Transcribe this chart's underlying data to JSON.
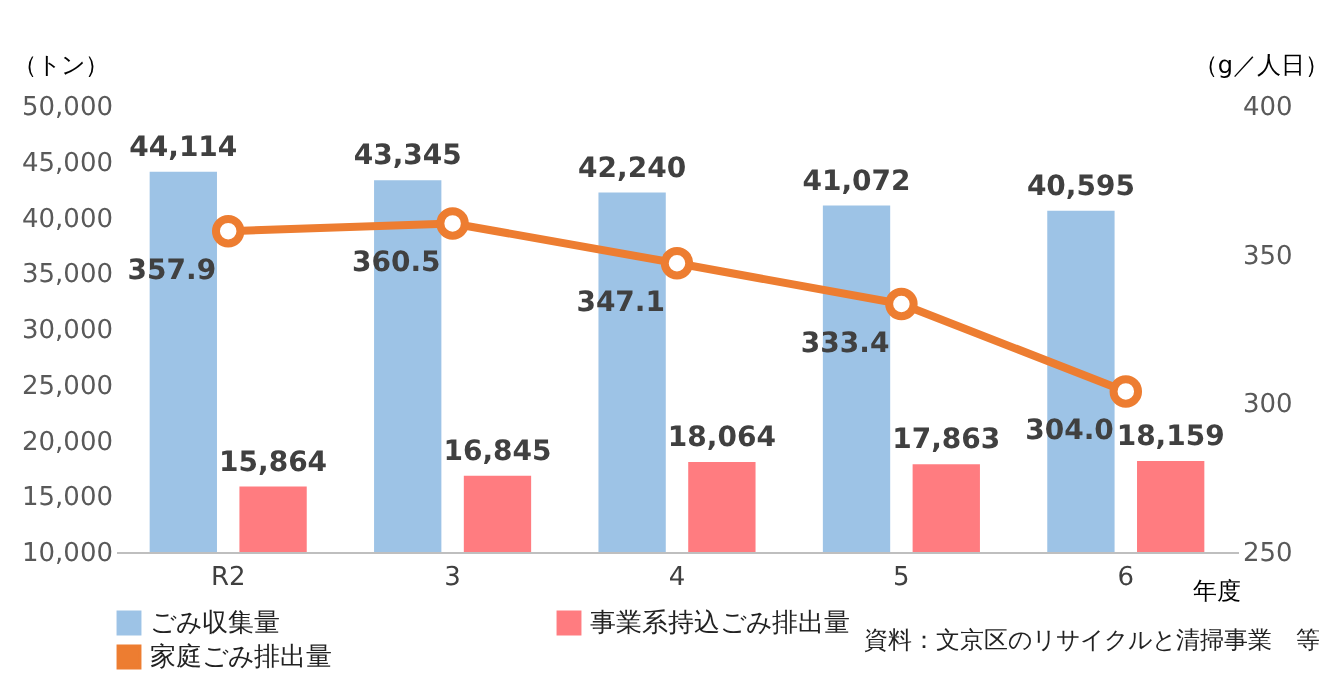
{
  "chart_data": {
    "type": "bar",
    "ylabel": "（トン）",
    "y2label": "（g／人日）",
    "xlabel": "年度",
    "categories": [
      "R2",
      "3",
      "4",
      "5",
      "6"
    ],
    "series": [
      {
        "name": "ごみ収集量",
        "color": "#9dc3e6",
        "values": [
          44114,
          43345,
          42240,
          41072,
          40595
        ],
        "value_labels": [
          "44,114",
          "43,345",
          "42,240",
          "41,072",
          "40,595"
        ]
      },
      {
        "name": "事業系持込ごみ排出量",
        "color": "#ff7c80",
        "values": [
          15864,
          16845,
          18064,
          17863,
          18159
        ],
        "value_labels": [
          "15,864",
          "16,845",
          "18,064",
          "17,863",
          "18,159"
        ]
      },
      {
        "name": "家庭ごみ排出量",
        "type": "line",
        "axis": "y2",
        "color": "#ed7d31",
        "marker": "circle",
        "line_style": "solid",
        "values": [
          357.9,
          360.5,
          347.1,
          333.4,
          304.0
        ],
        "value_labels": [
          "357.9",
          "360.5",
          "347.1",
          "333.4",
          "304.0"
        ]
      }
    ],
    "ylim": [
      10000,
      50000
    ],
    "yticks": [
      {
        "value": 10000,
        "label": "10,000"
      },
      {
        "value": 15000,
        "label": "15,000"
      },
      {
        "value": 20000,
        "label": "20,000"
      },
      {
        "value": 25000,
        "label": "25,000"
      },
      {
        "value": 30000,
        "label": "30,000"
      },
      {
        "value": 35000,
        "label": "35,000"
      },
      {
        "value": 40000,
        "label": "40,000"
      },
      {
        "value": 45000,
        "label": "45,000"
      },
      {
        "value": 50000,
        "label": "50,000"
      }
    ],
    "y2lim": [
      250,
      400
    ],
    "y2ticks": [
      250,
      300,
      350,
      400
    ],
    "legend": "bottom",
    "annotations": [
      "資料：文京区のリサイクルと清掃事業　等"
    ]
  }
}
